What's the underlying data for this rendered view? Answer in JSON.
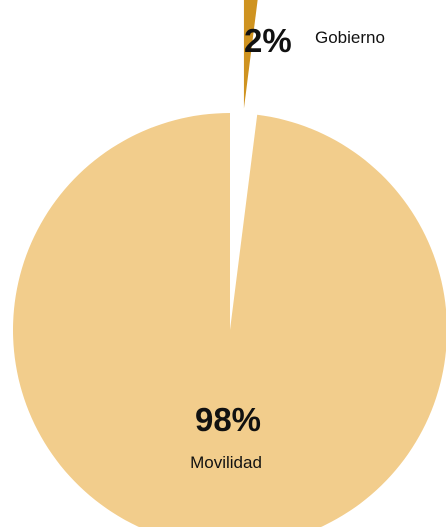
{
  "chart_data": {
    "type": "pie",
    "title": "",
    "slices": [
      {
        "label": "Movilidad",
        "value": 98,
        "value_label": "98%",
        "color": "#f2cd8c"
      },
      {
        "label": "Gobierno",
        "value": 2,
        "value_label": "2%",
        "color": "#cf9320",
        "exploded": true
      }
    ],
    "legend": "none"
  }
}
